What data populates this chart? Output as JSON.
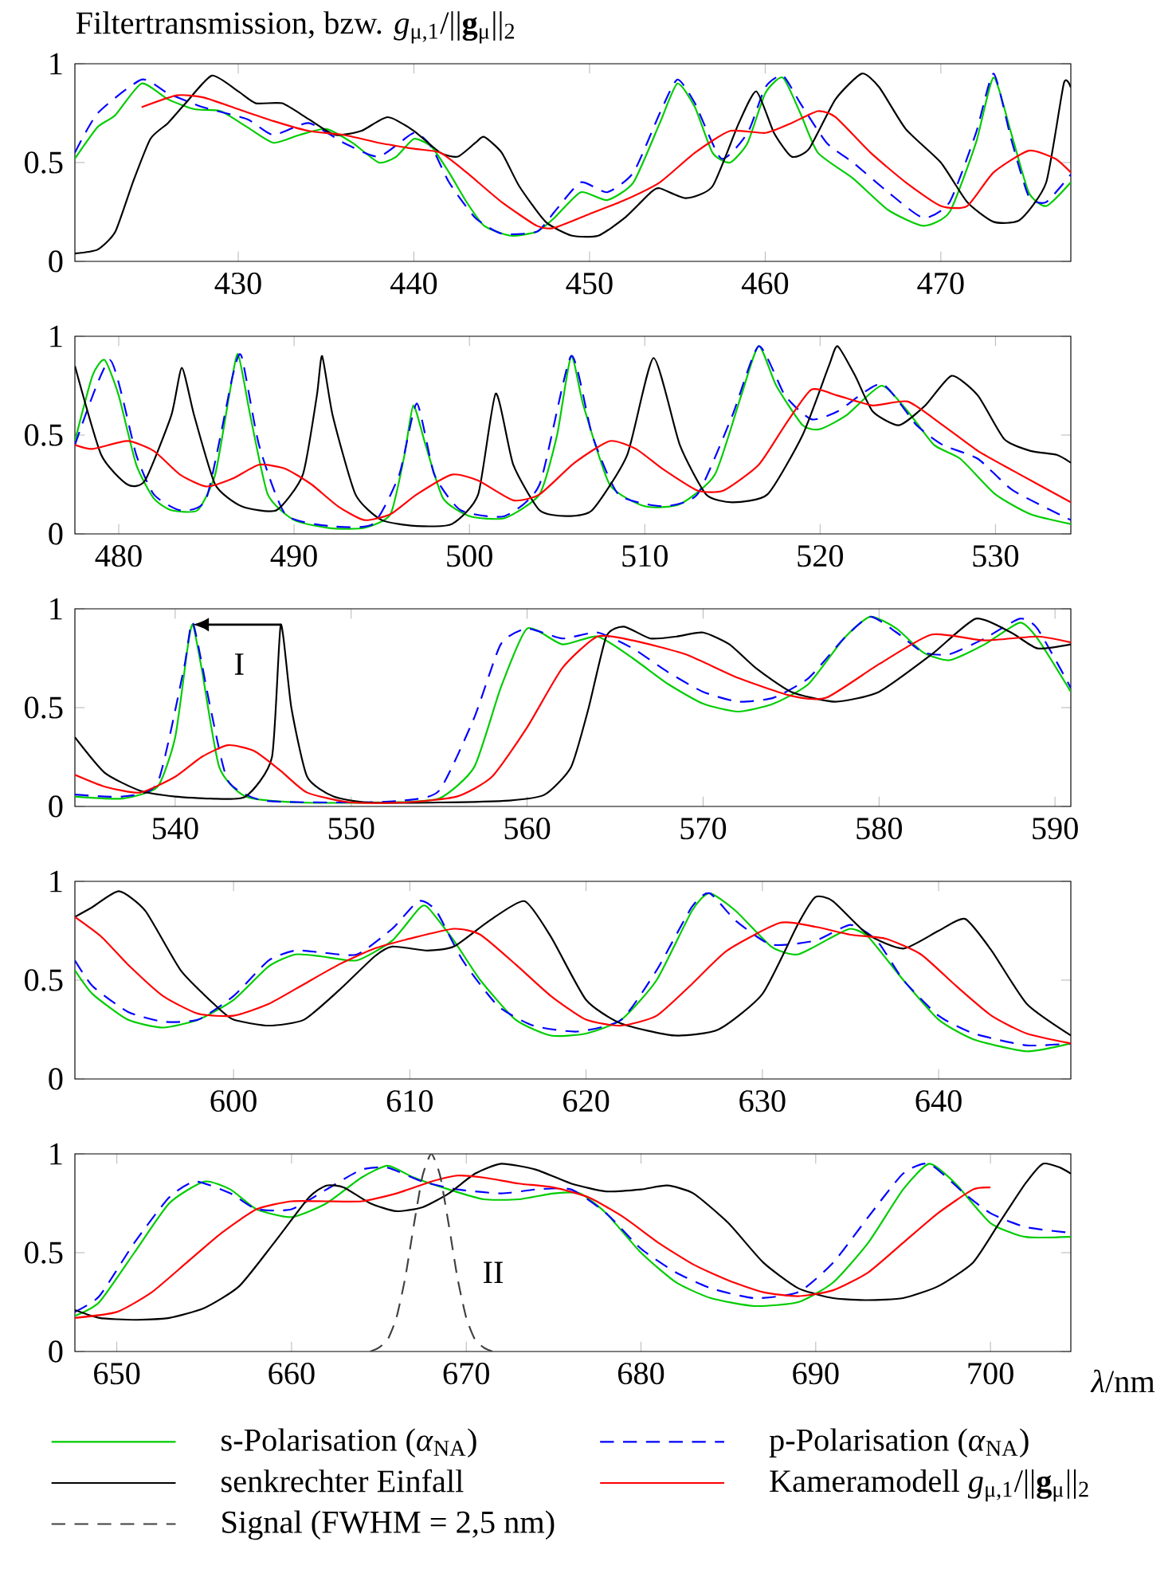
{
  "chart_data": [
    {
      "type": "line",
      "title": "Filtertransmission, bzw. *g*$_{μ,1}$/||**g**$_{μ}$||$_{2}$",
      "xlim": [
        420.7,
        477.4
      ],
      "ylim": [
        0,
        1
      ],
      "xticks": [
        430,
        440,
        450,
        460,
        470
      ],
      "yticks": [
        0,
        0.5,
        1
      ],
      "marker": "none",
      "series": [
        {
          "color": "#00cc00",
          "line_style": "solid",
          "x": [
            420.7,
            422,
            423,
            424.5,
            426,
            427.5,
            429,
            430.5,
            432,
            433.5,
            435,
            436.5,
            438,
            439,
            440,
            441,
            442,
            443,
            444,
            445.5,
            447,
            448,
            449.5,
            451,
            452.5,
            454,
            455,
            456,
            457,
            458,
            459,
            460,
            461,
            462,
            463,
            465,
            467,
            469,
            470.5,
            472,
            473,
            474,
            475,
            476,
            477.4
          ],
          "values": [
            0.52,
            0.68,
            0.74,
            0.9,
            0.82,
            0.77,
            0.76,
            0.68,
            0.6,
            0.64,
            0.67,
            0.6,
            0.5,
            0.53,
            0.62,
            0.58,
            0.45,
            0.3,
            0.18,
            0.13,
            0.15,
            0.22,
            0.35,
            0.31,
            0.4,
            0.7,
            0.9,
            0.78,
            0.55,
            0.5,
            0.6,
            0.85,
            0.93,
            0.75,
            0.55,
            0.42,
            0.26,
            0.18,
            0.25,
            0.6,
            0.93,
            0.65,
            0.35,
            0.28,
            0.4
          ]
        },
        {
          "color": "#0000ff",
          "line_style": "dashed",
          "x": [
            420.7,
            422,
            424.5,
            426,
            428,
            430.5,
            432,
            434,
            436,
            438,
            440,
            441,
            442,
            443.5,
            445,
            447,
            448,
            449.5,
            451,
            452.5,
            454,
            455,
            456,
            457.5,
            459,
            460,
            461,
            462,
            463.5,
            465,
            467,
            469,
            470.5,
            472,
            473,
            474,
            475,
            476,
            477.4
          ],
          "values": [
            0.55,
            0.75,
            0.92,
            0.85,
            0.78,
            0.72,
            0.64,
            0.7,
            0.6,
            0.53,
            0.65,
            0.58,
            0.4,
            0.22,
            0.14,
            0.15,
            0.25,
            0.4,
            0.35,
            0.45,
            0.75,
            0.92,
            0.8,
            0.52,
            0.65,
            0.88,
            0.94,
            0.8,
            0.6,
            0.5,
            0.35,
            0.22,
            0.3,
            0.65,
            0.95,
            0.62,
            0.33,
            0.3,
            0.44
          ]
        },
        {
          "color": "#000000",
          "line_style": "solid",
          "x": [
            420.7,
            422,
            423,
            424,
            425,
            426,
            427,
            428.5,
            430,
            431,
            432.5,
            434,
            435.5,
            437,
            438.5,
            440,
            441.5,
            442.5,
            443.5,
            444,
            445,
            446,
            447.5,
            449,
            450.5,
            452,
            453.5,
            454,
            455.5,
            457,
            458.5,
            459.5,
            460.5,
            461.5,
            462.5,
            464,
            465.5,
            466.5,
            468,
            470,
            471.5,
            473,
            474.5,
            476,
            477,
            477.4
          ],
          "values": [
            0.04,
            0.06,
            0.15,
            0.4,
            0.62,
            0.7,
            0.8,
            0.94,
            0.86,
            0.8,
            0.8,
            0.72,
            0.64,
            0.66,
            0.73,
            0.66,
            0.55,
            0.53,
            0.6,
            0.63,
            0.55,
            0.38,
            0.2,
            0.13,
            0.13,
            0.22,
            0.35,
            0.37,
            0.32,
            0.38,
            0.7,
            0.86,
            0.65,
            0.53,
            0.57,
            0.82,
            0.95,
            0.88,
            0.67,
            0.5,
            0.3,
            0.2,
            0.21,
            0.4,
            0.9,
            0.88
          ]
        },
        {
          "color": "#ff0000",
          "line_style": "solid",
          "x": [
            424.5,
            426.5,
            428,
            430,
            432,
            434,
            436,
            438,
            440,
            441.5,
            443,
            445,
            447,
            448,
            450,
            452,
            454,
            456,
            458,
            460,
            461.5,
            463,
            464,
            466,
            468,
            470,
            471.5,
            473,
            475,
            476.5,
            477.4
          ],
          "values": [
            0.78,
            0.84,
            0.83,
            0.77,
            0.71,
            0.66,
            0.64,
            0.6,
            0.57,
            0.55,
            0.45,
            0.3,
            0.18,
            0.17,
            0.24,
            0.31,
            0.4,
            0.55,
            0.66,
            0.65,
            0.7,
            0.76,
            0.73,
            0.55,
            0.4,
            0.28,
            0.28,
            0.45,
            0.56,
            0.52,
            0.45
          ]
        }
      ]
    },
    {
      "type": "line",
      "xlim": [
        477.5,
        534.3
      ],
      "ylim": [
        0,
        1
      ],
      "xticks": [
        480,
        490,
        500,
        510,
        520,
        530
      ],
      "yticks": [
        0,
        0.5,
        1
      ],
      "marker": "none",
      "series": [
        {
          "color": "#00cc00",
          "line_style": "solid",
          "x": [
            477.5,
            478.5,
            479.2,
            480,
            481,
            482,
            483,
            484.5,
            485.5,
            486.3,
            486.8,
            487.5,
            488.5,
            490,
            492,
            494,
            495.5,
            496.3,
            496.8,
            497.5,
            498.5,
            500,
            502,
            504,
            505,
            505.8,
            506.5,
            508,
            510,
            512,
            514,
            515.5,
            516.5,
            517.5,
            519,
            520,
            521.5,
            523.5,
            525,
            526.5,
            528,
            530,
            532,
            534.3
          ],
          "values": [
            0.47,
            0.8,
            0.88,
            0.7,
            0.35,
            0.18,
            0.12,
            0.12,
            0.3,
            0.7,
            0.91,
            0.6,
            0.2,
            0.07,
            0.03,
            0.03,
            0.1,
            0.4,
            0.65,
            0.45,
            0.18,
            0.09,
            0.08,
            0.2,
            0.5,
            0.9,
            0.65,
            0.25,
            0.14,
            0.15,
            0.3,
            0.7,
            0.95,
            0.75,
            0.55,
            0.53,
            0.6,
            0.75,
            0.62,
            0.45,
            0.38,
            0.2,
            0.1,
            0.05
          ]
        },
        {
          "color": "#0000ff",
          "line_style": "dashed",
          "x": [
            477.5,
            479.5,
            481,
            482,
            483.5,
            485,
            486.5,
            487,
            488,
            489.5,
            492,
            494.5,
            496,
            497,
            498,
            499.5,
            502,
            504,
            505.8,
            507,
            508.5,
            511,
            513,
            515,
            516.5,
            518,
            519.5,
            521,
            523.5,
            525.5,
            527,
            529,
            531,
            534.3
          ],
          "values": [
            0.45,
            0.88,
            0.4,
            0.2,
            0.12,
            0.18,
            0.8,
            0.9,
            0.45,
            0.1,
            0.04,
            0.05,
            0.3,
            0.66,
            0.3,
            0.12,
            0.09,
            0.25,
            0.9,
            0.5,
            0.2,
            0.14,
            0.2,
            0.6,
            0.95,
            0.7,
            0.58,
            0.62,
            0.76,
            0.55,
            0.45,
            0.38,
            0.22,
            0.07
          ]
        },
        {
          "color": "#000000",
          "line_style": "solid",
          "x": [
            477.5,
            479,
            480.5,
            481.5,
            483,
            483.6,
            484.3,
            485.5,
            487,
            489,
            490.5,
            491.3,
            491.6,
            492.2,
            493.5,
            495,
            497,
            499,
            500.5,
            501.5,
            502.5,
            504,
            505.5,
            507,
            509,
            510.5,
            512,
            513.5,
            515,
            517,
            519,
            520.5,
            521,
            522,
            523,
            524.5,
            526,
            527.5,
            529,
            530.5,
            532,
            533.5,
            534.3
          ],
          "values": [
            0.85,
            0.4,
            0.25,
            0.27,
            0.6,
            0.84,
            0.6,
            0.25,
            0.14,
            0.12,
            0.3,
            0.7,
            0.9,
            0.6,
            0.2,
            0.07,
            0.04,
            0.05,
            0.2,
            0.71,
            0.35,
            0.12,
            0.09,
            0.12,
            0.4,
            0.89,
            0.45,
            0.2,
            0.16,
            0.2,
            0.5,
            0.85,
            0.95,
            0.8,
            0.62,
            0.55,
            0.65,
            0.8,
            0.7,
            0.48,
            0.42,
            0.4,
            0.36
          ]
        },
        {
          "color": "#ff0000",
          "line_style": "solid",
          "x": [
            477.5,
            478.5,
            480.5,
            482,
            483.5,
            485,
            486.5,
            488,
            489.5,
            491,
            492.5,
            494,
            495.5,
            497,
            499,
            500.5,
            502.5,
            504,
            506,
            508,
            509.5,
            511,
            513,
            514.5,
            516.5,
            518,
            519.5,
            521,
            523,
            525,
            527,
            529,
            531,
            534.3
          ],
          "values": [
            0.45,
            0.43,
            0.47,
            0.42,
            0.3,
            0.24,
            0.28,
            0.35,
            0.33,
            0.25,
            0.14,
            0.07,
            0.1,
            0.2,
            0.3,
            0.27,
            0.17,
            0.2,
            0.36,
            0.47,
            0.43,
            0.33,
            0.22,
            0.22,
            0.35,
            0.55,
            0.73,
            0.7,
            0.65,
            0.67,
            0.55,
            0.42,
            0.32,
            0.16
          ]
        }
      ]
    },
    {
      "type": "line",
      "xlim": [
        534.3,
        590.9
      ],
      "ylim": [
        0,
        1
      ],
      "xticks": [
        540,
        550,
        560,
        570,
        580,
        590
      ],
      "yticks": [
        0,
        0.5,
        1
      ],
      "marker": "none",
      "annotations": [
        "I"
      ],
      "series": [
        {
          "color": "#00cc00",
          "line_style": "solid",
          "x": [
            534.3,
            537,
            539,
            540,
            540.7,
            541,
            541.5,
            542.5,
            544,
            547,
            552,
            555,
            557,
            558.5,
            560,
            562,
            564,
            566,
            568,
            570,
            572,
            574,
            576,
            578,
            579.5,
            581,
            582.5,
            584,
            586,
            588,
            589,
            590.9
          ],
          "values": [
            0.05,
            0.04,
            0.1,
            0.35,
            0.8,
            0.92,
            0.7,
            0.2,
            0.05,
            0.02,
            0.02,
            0.04,
            0.2,
            0.6,
            0.9,
            0.82,
            0.86,
            0.75,
            0.62,
            0.52,
            0.48,
            0.52,
            0.62,
            0.85,
            0.96,
            0.9,
            0.78,
            0.74,
            0.82,
            0.93,
            0.85,
            0.58
          ]
        },
        {
          "color": "#0000ff",
          "line_style": "dashed",
          "x": [
            534.3,
            537,
            539,
            540.5,
            541,
            542,
            543,
            545,
            550,
            553,
            555,
            557,
            558.5,
            560,
            562,
            564,
            566,
            568,
            570,
            572,
            574,
            576,
            578,
            579.5,
            581,
            582.5,
            584,
            586,
            588,
            589,
            590.9
          ],
          "values": [
            0.06,
            0.05,
            0.12,
            0.7,
            0.93,
            0.5,
            0.13,
            0.03,
            0.02,
            0.03,
            0.08,
            0.45,
            0.82,
            0.9,
            0.85,
            0.88,
            0.8,
            0.68,
            0.58,
            0.53,
            0.55,
            0.65,
            0.85,
            0.96,
            0.88,
            0.78,
            0.77,
            0.85,
            0.95,
            0.9,
            0.6
          ]
        },
        {
          "color": "#000000",
          "line_style": "solid",
          "x": [
            534.3,
            536,
            538,
            540,
            542,
            544,
            545.5,
            546,
            546.6,
            547.5,
            549,
            551,
            555,
            559,
            561,
            562.5,
            563.5,
            564.5,
            565.5,
            567,
            568.5,
            570,
            571.5,
            573,
            575,
            577.5,
            580,
            583,
            585.5,
            587.5,
            589,
            590.9
          ],
          "values": [
            0.35,
            0.17,
            0.08,
            0.05,
            0.04,
            0.05,
            0.25,
            0.92,
            0.5,
            0.15,
            0.05,
            0.02,
            0.02,
            0.03,
            0.06,
            0.2,
            0.5,
            0.86,
            0.91,
            0.85,
            0.86,
            0.88,
            0.82,
            0.7,
            0.58,
            0.53,
            0.58,
            0.77,
            0.95,
            0.88,
            0.8,
            0.82
          ]
        },
        {
          "color": "#ff0000",
          "line_style": "solid",
          "x": [
            534.3,
            536,
            538,
            540,
            541.5,
            543,
            544.5,
            546,
            547.5,
            550,
            553,
            556,
            558,
            560,
            562,
            564,
            566,
            569,
            572,
            575,
            577,
            580,
            583,
            586,
            589,
            590.9
          ],
          "values": [
            0.16,
            0.1,
            0.07,
            0.15,
            0.25,
            0.31,
            0.28,
            0.18,
            0.07,
            0.02,
            0.02,
            0.05,
            0.15,
            0.4,
            0.7,
            0.86,
            0.84,
            0.77,
            0.65,
            0.56,
            0.55,
            0.72,
            0.87,
            0.84,
            0.86,
            0.83
          ]
        }
      ]
    },
    {
      "type": "line",
      "xlim": [
        591.0,
        647.5
      ],
      "ylim": [
        0,
        1
      ],
      "xticks": [
        600,
        610,
        620,
        630,
        640
      ],
      "yticks": [
        0,
        0.5,
        1
      ],
      "marker": "none",
      "series": [
        {
          "color": "#00cc00",
          "line_style": "solid",
          "x": [
            591,
            592,
            594,
            596,
            598,
            600,
            602,
            603.5,
            605,
            607,
            609,
            610.5,
            611,
            612.5,
            614,
            616,
            618,
            620,
            622,
            624,
            626,
            627,
            628.5,
            630.5,
            632,
            634,
            635,
            636,
            638,
            640,
            642,
            645,
            647.5
          ],
          "values": [
            0.55,
            0.43,
            0.3,
            0.26,
            0.3,
            0.4,
            0.57,
            0.63,
            0.62,
            0.6,
            0.7,
            0.86,
            0.87,
            0.7,
            0.5,
            0.3,
            0.22,
            0.23,
            0.3,
            0.5,
            0.85,
            0.94,
            0.85,
            0.67,
            0.63,
            0.72,
            0.76,
            0.72,
            0.5,
            0.3,
            0.2,
            0.14,
            0.18
          ]
        },
        {
          "color": "#0000ff",
          "line_style": "dashed",
          "x": [
            591,
            592,
            594,
            596,
            598,
            600,
            602,
            603.5,
            605,
            607,
            609,
            610.5,
            611.5,
            613,
            615,
            617,
            619.5,
            622,
            624,
            626,
            627,
            628.5,
            630.5,
            633,
            635,
            636.5,
            638,
            640,
            642,
            645,
            647.5
          ],
          "values": [
            0.6,
            0.47,
            0.34,
            0.29,
            0.3,
            0.42,
            0.6,
            0.65,
            0.64,
            0.63,
            0.76,
            0.9,
            0.85,
            0.6,
            0.37,
            0.27,
            0.24,
            0.3,
            0.55,
            0.87,
            0.94,
            0.8,
            0.68,
            0.7,
            0.78,
            0.7,
            0.5,
            0.32,
            0.23,
            0.17,
            0.18
          ]
        },
        {
          "color": "#000000",
          "line_style": "solid",
          "x": [
            591,
            592,
            593.5,
            595,
            597,
            599,
            600,
            602,
            604,
            606,
            608,
            609,
            611,
            612.5,
            614.5,
            616.5,
            618,
            620,
            622,
            625,
            627.5,
            630,
            632,
            633,
            634,
            636,
            638,
            640,
            641.5,
            643,
            645,
            647.5
          ],
          "values": [
            0.82,
            0.87,
            0.95,
            0.85,
            0.55,
            0.37,
            0.3,
            0.27,
            0.3,
            0.45,
            0.62,
            0.67,
            0.65,
            0.67,
            0.8,
            0.9,
            0.72,
            0.4,
            0.28,
            0.22,
            0.25,
            0.43,
            0.78,
            0.92,
            0.9,
            0.73,
            0.66,
            0.75,
            0.81,
            0.65,
            0.38,
            0.22
          ]
        },
        {
          "color": "#ff0000",
          "line_style": "solid",
          "x": [
            591,
            592.5,
            594,
            596,
            598,
            600,
            602,
            604,
            606,
            608,
            610,
            612.5,
            614,
            616,
            618,
            620,
            622,
            624,
            626,
            628,
            631,
            633,
            635,
            637,
            639,
            641,
            643,
            645,
            647.5
          ],
          "values": [
            0.82,
            0.72,
            0.58,
            0.42,
            0.33,
            0.32,
            0.38,
            0.48,
            0.58,
            0.66,
            0.71,
            0.76,
            0.73,
            0.58,
            0.42,
            0.3,
            0.27,
            0.32,
            0.48,
            0.65,
            0.79,
            0.77,
            0.73,
            0.71,
            0.63,
            0.47,
            0.32,
            0.23,
            0.18
          ]
        }
      ]
    },
    {
      "type": "line",
      "xlim": [
        647.6,
        704.6
      ],
      "ylim": [
        0,
        1
      ],
      "xticks": [
        650,
        660,
        670,
        680,
        690,
        700
      ],
      "yticks": [
        0,
        0.5,
        1
      ],
      "marker": "none",
      "xlabel": "*λ*/nm",
      "legend": "bottom",
      "annotations": [
        "II"
      ],
      "series": [
        {
          "name": "s-Polarisation (*α*$_{NA}$)",
          "color": "#00cc00",
          "line_style": "solid",
          "x": [
            647.6,
            649,
            651,
            653,
            655,
            656.5,
            658,
            660,
            662,
            664,
            665.5,
            667,
            669,
            671,
            673,
            675,
            676.5,
            678,
            680,
            682,
            684,
            686.5,
            689,
            691,
            693,
            695,
            696.5,
            698,
            700,
            702,
            704.6
          ],
          "values": [
            0.18,
            0.25,
            0.5,
            0.75,
            0.86,
            0.82,
            0.72,
            0.68,
            0.75,
            0.88,
            0.94,
            0.88,
            0.82,
            0.77,
            0.77,
            0.8,
            0.8,
            0.7,
            0.5,
            0.35,
            0.27,
            0.23,
            0.25,
            0.35,
            0.55,
            0.82,
            0.95,
            0.85,
            0.65,
            0.58,
            0.58
          ]
        },
        {
          "name": "p-Polarisation (*α*$_{NA}$)",
          "color": "#0000ff",
          "line_style": "dashed",
          "x": [
            647.6,
            649,
            651,
            653,
            654.5,
            656.5,
            658,
            660,
            662,
            664,
            665.5,
            667.5,
            669.5,
            672,
            674,
            676,
            678,
            680,
            682,
            684,
            686.5,
            689,
            691,
            693,
            695,
            696.5,
            698.5,
            700,
            702,
            704.6
          ],
          "values": [
            0.2,
            0.28,
            0.55,
            0.78,
            0.86,
            0.8,
            0.72,
            0.72,
            0.82,
            0.92,
            0.93,
            0.86,
            0.82,
            0.8,
            0.82,
            0.82,
            0.7,
            0.52,
            0.4,
            0.32,
            0.27,
            0.3,
            0.45,
            0.68,
            0.9,
            0.95,
            0.8,
            0.7,
            0.63,
            0.6
          ]
        },
        {
          "name": "senkrechter Einfall",
          "color": "#000000",
          "line_style": "solid",
          "x": [
            647.6,
            649,
            651,
            653,
            655,
            657,
            659,
            661,
            662,
            663,
            664.5,
            666,
            667.5,
            669,
            670.5,
            672,
            674,
            676,
            678,
            680,
            681.5,
            683,
            685,
            687,
            689,
            691,
            693,
            695,
            697,
            699,
            700.5,
            702,
            703,
            704,
            704.6
          ],
          "values": [
            0.21,
            0.17,
            0.16,
            0.17,
            0.22,
            0.33,
            0.55,
            0.78,
            0.84,
            0.83,
            0.75,
            0.71,
            0.73,
            0.8,
            0.9,
            0.95,
            0.92,
            0.85,
            0.81,
            0.82,
            0.84,
            0.8,
            0.65,
            0.45,
            0.32,
            0.27,
            0.26,
            0.27,
            0.33,
            0.45,
            0.65,
            0.85,
            0.95,
            0.93,
            0.9
          ]
        },
        {
          "name": "Kameramodell *g*$_{μ,1}$/||**g**$_{μ}$||$_{2}$",
          "color": "#ff0000",
          "line_style": "solid",
          "x": [
            647.6,
            650,
            652,
            654,
            656,
            658,
            660,
            662,
            664,
            666,
            668,
            669.5,
            671,
            673,
            675,
            677,
            679,
            681,
            683,
            685,
            687,
            689,
            691,
            693,
            695,
            697,
            699,
            700
          ],
          "values": [
            0.17,
            0.2,
            0.3,
            0.45,
            0.6,
            0.72,
            0.76,
            0.76,
            0.76,
            0.8,
            0.86,
            0.89,
            0.88,
            0.85,
            0.83,
            0.78,
            0.68,
            0.55,
            0.44,
            0.36,
            0.3,
            0.28,
            0.31,
            0.4,
            0.55,
            0.7,
            0.82,
            0.83
          ]
        },
        {
          "name": "Signal (FWHM = 2,5 nm)",
          "color": "#404040",
          "line_style": "dashed",
          "x": [
            664.5,
            665,
            665.5,
            666,
            666.5,
            667,
            667.5,
            668,
            668.5,
            669,
            669.5,
            670,
            670.5,
            671,
            671.5
          ],
          "values": [
            0,
            0.02,
            0.06,
            0.17,
            0.37,
            0.64,
            0.89,
            1.0,
            0.89,
            0.64,
            0.37,
            0.17,
            0.06,
            0.02,
            0
          ]
        }
      ]
    }
  ]
}
